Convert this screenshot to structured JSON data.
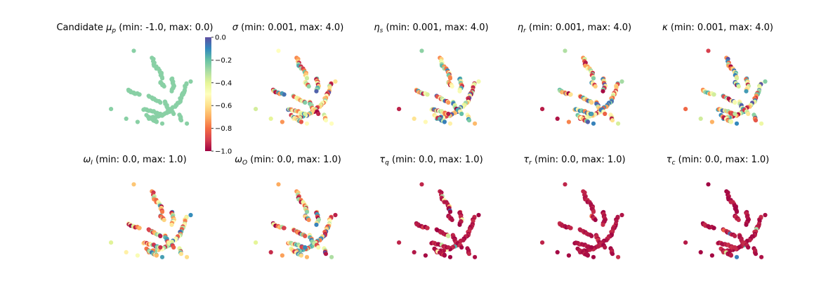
{
  "colormap": "Spectral",
  "colors": [
    "#9e0142",
    "#d53e4f",
    "#f46d43",
    "#fdae61",
    "#fee08b",
    "#ffffbf",
    "#e6f598",
    "#abdda4",
    "#66c2a5",
    "#3288bd",
    "#5e4fa2"
  ],
  "chart_data": [
    {
      "type": "scatter",
      "title_pre": "Candidate",
      "title_sym": "μ",
      "title_sub": "p",
      "title_rest": " (min: -1.0, max: 0.0)",
      "min": -1.0,
      "max": 0.0,
      "uniform_value": -0.25,
      "colorbar": {
        "ticks": [
          "0.0",
          "−0.2",
          "−0.4",
          "−0.6",
          "−0.8",
          "−1.0"
        ],
        "values": [
          0.0,
          -0.2,
          -0.4,
          -0.6,
          -0.8,
          -1.0
        ]
      }
    },
    {
      "type": "scatter",
      "title_pre": "",
      "title_sym": "σ",
      "title_sub": "",
      "title_rest": " (min: 0.001, max: 4.0)",
      "min": 0.001,
      "max": 4.0,
      "seed": 11
    },
    {
      "type": "scatter",
      "title_pre": "",
      "title_sym": "η",
      "title_sub": "s",
      "title_rest": " (min: 0.001, max: 4.0)",
      "min": 0.001,
      "max": 4.0,
      "seed": 23
    },
    {
      "type": "scatter",
      "title_pre": "",
      "title_sym": "η",
      "title_sub": "r",
      "title_rest": " (min: 0.001, max: 4.0)",
      "min": 0.001,
      "max": 4.0,
      "seed": 37
    },
    {
      "type": "scatter",
      "title_pre": "",
      "title_sym": "κ",
      "title_sub": "",
      "title_rest": " (min: 0.001, max: 4.0)",
      "min": 0.001,
      "max": 4.0,
      "seed": 41
    },
    {
      "type": "scatter",
      "title_pre": "",
      "title_sym": "ω",
      "title_sub": "I",
      "title_rest": " (min: 0.0, max: 1.0)",
      "min": 0.0,
      "max": 1.0,
      "seed": 53
    },
    {
      "type": "scatter",
      "title_pre": "",
      "title_sym": "ω",
      "title_sub": "O",
      "title_rest": " (min: 0.0, max: 1.0)",
      "min": 0.0,
      "max": 1.0,
      "seed": 67
    },
    {
      "type": "scatter",
      "title_pre": "",
      "title_sym": "τ",
      "title_sub": "q",
      "title_rest": " (min: 0.0, max: 1.0)",
      "min": 0.0,
      "max": 1.0,
      "seed": 71,
      "bias": 0.12
    },
    {
      "type": "scatter",
      "title_pre": "",
      "title_sym": "τ",
      "title_sub": "r",
      "title_rest": " (min: 0.0, max: 1.0)",
      "min": 0.0,
      "max": 1.0,
      "seed": 83,
      "bias": 0.04
    },
    {
      "type": "scatter",
      "title_pre": "",
      "title_sym": "τ",
      "title_sub": "c",
      "title_rest": " (min: 0.0, max: 1.0)",
      "min": 0.0,
      "max": 1.0,
      "seed": 97,
      "bias": 0.03
    }
  ]
}
